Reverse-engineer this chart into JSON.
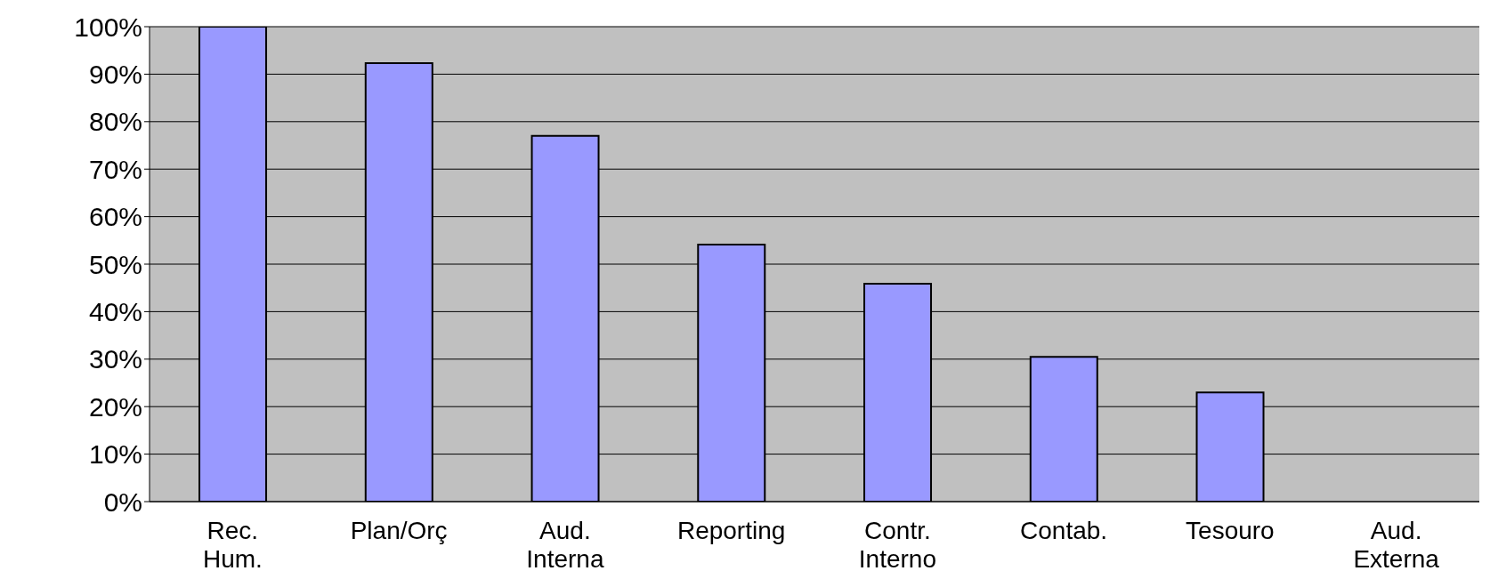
{
  "chart_data": {
    "type": "bar",
    "categories": [
      "Rec. Hum.",
      "Plan/Orç",
      "Aud. Interna",
      "Reporting",
      "Contr. Interno",
      "Contab.",
      "Tesouro",
      "Aud. Externa"
    ],
    "values": [
      100,
      92.3,
      77,
      54.1,
      45.9,
      30.5,
      23,
      0
    ],
    "color": "#9999ff",
    "ylim": [
      0,
      100
    ],
    "yticks": [
      {
        "value": 0,
        "label": "0%"
      },
      {
        "value": 10,
        "label": "10%"
      },
      {
        "value": 20,
        "label": "20%"
      },
      {
        "value": 30,
        "label": "30%"
      },
      {
        "value": 40,
        "label": "40%"
      },
      {
        "value": 50,
        "label": "50%"
      },
      {
        "value": 60,
        "label": "60%"
      },
      {
        "value": 70,
        "label": "70%"
      },
      {
        "value": 80,
        "label": "80%"
      },
      {
        "value": 90,
        "label": "90%"
      },
      {
        "value": 100,
        "label": "100%"
      }
    ],
    "grid": "y"
  }
}
